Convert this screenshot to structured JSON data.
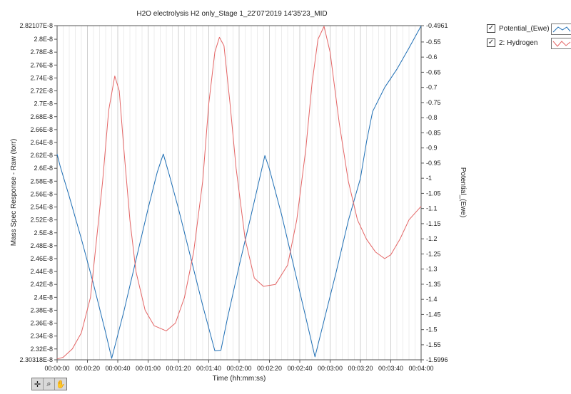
{
  "chart_data": {
    "type": "line",
    "title": "H2O electrolysis H2 only_Stage 1_22'07'2019 14'35'23_MID",
    "xlabel": "Time (hh:mm:ss)",
    "ylabel_left": "Mass Spec Response - Raw (torr)",
    "ylabel_right": "Potential_(Ewe)",
    "x_range_s": [
      0,
      240
    ],
    "x_ticks": [
      "00:00:00",
      "00:00:20",
      "00:00:40",
      "00:01:00",
      "00:01:20",
      "00:01:40",
      "00:02:00",
      "00:02:20",
      "00:02:40",
      "00:03:00",
      "00:03:20",
      "00:03:40",
      "00:04:00"
    ],
    "left_ylim": [
      2.30318e-08,
      2.82107e-08
    ],
    "left_ticks": [
      "2.30318E-8",
      "2.32E-8",
      "2.34E-8",
      "2.36E-8",
      "2.38E-8",
      "2.4E-8",
      "2.42E-8",
      "2.44E-8",
      "2.46E-8",
      "2.48E-8",
      "2.5E-8",
      "2.52E-8",
      "2.54E-8",
      "2.56E-8",
      "2.58E-8",
      "2.6E-8",
      "2.62E-8",
      "2.64E-8",
      "2.66E-8",
      "2.68E-8",
      "2.7E-8",
      "2.72E-8",
      "2.74E-8",
      "2.76E-8",
      "2.78E-8",
      "2.8E-8",
      "2.82107E-8"
    ],
    "right_ylim": [
      -1.5996,
      -0.4961
    ],
    "right_ticks": [
      "-0.4961",
      "-0.55",
      "-0.6",
      "-0.65",
      "-0.7",
      "-0.75",
      "-0.8",
      "-0.85",
      "-0.9",
      "-0.95",
      "-1",
      "-1.05",
      "-1.1",
      "-1.15",
      "-1.2",
      "-1.25",
      "-1.3",
      "-1.35",
      "-1.4",
      "-1.45",
      "-1.5",
      "-1.55",
      "-1.5996"
    ],
    "grid": "vertical",
    "legend_position": "top-right",
    "series": [
      {
        "name": "Potential_(Ewe)",
        "axis": "right",
        "color": "#1f6fb5",
        "points": [
          [
            0,
            -0.92
          ],
          [
            2,
            -0.96
          ],
          [
            8,
            -1.06
          ],
          [
            16,
            -1.2
          ],
          [
            24,
            -1.35
          ],
          [
            32,
            -1.51
          ],
          [
            36,
            -1.595
          ],
          [
            44,
            -1.44
          ],
          [
            52,
            -1.27
          ],
          [
            60,
            -1.1
          ],
          [
            66,
            -0.98
          ],
          [
            70,
            -0.92
          ],
          [
            74,
            -0.99
          ],
          [
            80,
            -1.1
          ],
          [
            88,
            -1.26
          ],
          [
            96,
            -1.42
          ],
          [
            104,
            -1.57
          ],
          [
            108,
            -1.568
          ],
          [
            112,
            -1.47
          ],
          [
            120,
            -1.29
          ],
          [
            128,
            -1.12
          ],
          [
            134,
            -0.99
          ],
          [
            137,
            -0.925
          ],
          [
            140,
            -0.97
          ],
          [
            148,
            -1.12
          ],
          [
            156,
            -1.29
          ],
          [
            164,
            -1.46
          ],
          [
            170,
            -1.59
          ],
          [
            176,
            -1.47
          ],
          [
            184,
            -1.31
          ],
          [
            192,
            -1.14
          ],
          [
            200,
            -1.0
          ],
          [
            204,
            -0.88
          ],
          [
            208,
            -0.78
          ],
          [
            216,
            -0.7
          ],
          [
            224,
            -0.64
          ],
          [
            232,
            -0.57
          ],
          [
            240,
            -0.497
          ]
        ]
      },
      {
        "name": "2: Hydrogen",
        "axis": "left",
        "color": "#e46565",
        "points": [
          [
            0,
            2.3045e-08
          ],
          [
            4,
            2.307e-08
          ],
          [
            10,
            2.32e-08
          ],
          [
            16,
            2.345e-08
          ],
          [
            22,
            2.4e-08
          ],
          [
            26,
            2.49e-08
          ],
          [
            30,
            2.58e-08
          ],
          [
            34,
            2.69e-08
          ],
          [
            38,
            2.743e-08
          ],
          [
            41,
            2.72e-08
          ],
          [
            44,
            2.63e-08
          ],
          [
            48,
            2.52e-08
          ],
          [
            52,
            2.44e-08
          ],
          [
            58,
            2.38e-08
          ],
          [
            64,
            2.356e-08
          ],
          [
            72,
            2.348e-08
          ],
          [
            78,
            2.36e-08
          ],
          [
            84,
            2.4e-08
          ],
          [
            90,
            2.47e-08
          ],
          [
            96,
            2.58e-08
          ],
          [
            100,
            2.7e-08
          ],
          [
            104,
            2.78e-08
          ],
          [
            107,
            2.803e-08
          ],
          [
            110,
            2.79e-08
          ],
          [
            114,
            2.7e-08
          ],
          [
            118,
            2.6e-08
          ],
          [
            124,
            2.49e-08
          ],
          [
            130,
            2.43e-08
          ],
          [
            136,
            2.417e-08
          ],
          [
            144,
            2.42e-08
          ],
          [
            152,
            2.45e-08
          ],
          [
            158,
            2.52e-08
          ],
          [
            164,
            2.63e-08
          ],
          [
            168,
            2.73e-08
          ],
          [
            172,
            2.8e-08
          ],
          [
            176,
            2.82e-08
          ],
          [
            180,
            2.78e-08
          ],
          [
            186,
            2.67e-08
          ],
          [
            192,
            2.58e-08
          ],
          [
            198,
            2.52e-08
          ],
          [
            204,
            2.49e-08
          ],
          [
            210,
            2.47e-08
          ],
          [
            216,
            2.46e-08
          ],
          [
            220,
            2.466e-08
          ],
          [
            226,
            2.49e-08
          ],
          [
            232,
            2.52e-08
          ],
          [
            240,
            2.541e-08
          ]
        ]
      }
    ]
  },
  "legend": {
    "items": [
      {
        "label": "Potential_(Ewe)",
        "checked": "✓",
        "color": "#1f6fb5"
      },
      {
        "label": "2: Hydrogen",
        "checked": "✓",
        "color": "#e46565"
      }
    ]
  },
  "toolbar": {
    "tools": [
      {
        "glyph": "✛",
        "icon": "cursor-move-icon"
      },
      {
        "glyph": "⌕",
        "icon": "zoom-icon"
      },
      {
        "glyph": "✋",
        "icon": "pan-hand-icon"
      }
    ]
  }
}
